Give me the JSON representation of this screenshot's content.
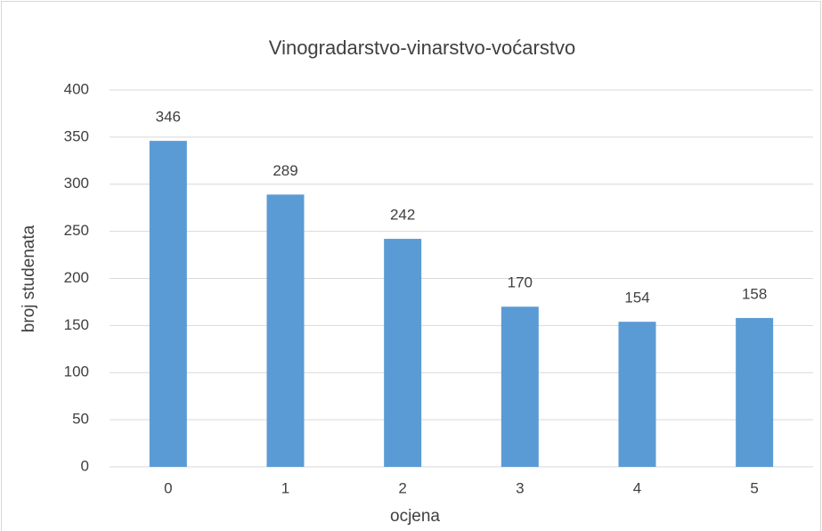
{
  "chart_data": {
    "type": "bar",
    "title": "Vinogradarstvo-vinarstvo-voćarstvo",
    "x_label": "ocjena",
    "y_label": "broj studenata",
    "categories": [
      "0",
      "1",
      "2",
      "3",
      "4",
      "5"
    ],
    "values": [
      346,
      289,
      242,
      170,
      154,
      158
    ],
    "color": "#5b9bd5",
    "ylim": [
      0,
      400
    ],
    "yticks": [
      0,
      50,
      100,
      150,
      200,
      250,
      300,
      350,
      400
    ],
    "grid": true
  }
}
